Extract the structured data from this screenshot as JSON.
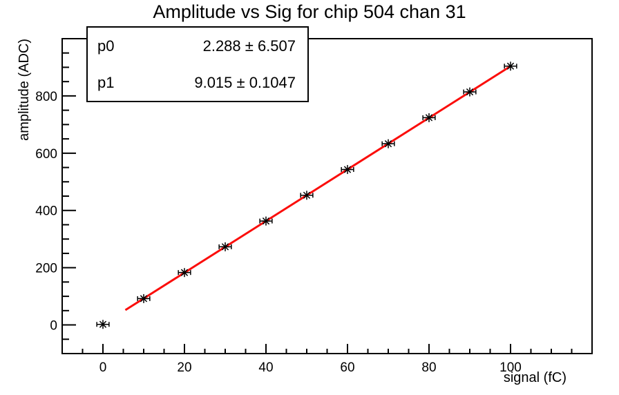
{
  "title": "Amplitude vs Sig for chip 504 chan 31",
  "stats_box": {
    "rows": [
      {
        "label": "p0",
        "value": "2.288 ± 6.507"
      },
      {
        "label": "p1",
        "value": "9.015 ± 0.1047"
      }
    ]
  },
  "chart_data": {
    "type": "scatter",
    "title": "Amplitude vs Sig for chip 504 chan 31",
    "xlabel": "signal (fC)",
    "ylabel": "amplitude (ADC)",
    "xlim": [
      -10,
      120
    ],
    "ylim": [
      -100,
      1000
    ],
    "grid": false,
    "x_major_ticks": [
      0,
      20,
      40,
      60,
      80,
      100
    ],
    "x_tick_labels": [
      "0",
      "20",
      "40",
      "60",
      "80",
      "100"
    ],
    "x_minor_step": 5,
    "y_major_ticks": [
      0,
      200,
      400,
      600,
      800
    ],
    "y_tick_labels": [
      "0",
      "200",
      "400",
      "600",
      "800"
    ],
    "y_minor_step": 50,
    "points": {
      "x": [
        0,
        10,
        20,
        30,
        40,
        50,
        60,
        70,
        80,
        90,
        100
      ],
      "y": [
        2,
        92,
        183,
        273,
        363,
        453,
        543,
        633,
        724,
        814,
        904
      ],
      "xerr": 1.5,
      "marker": "asterisk",
      "color": "#000000"
    },
    "fit": {
      "type": "linear",
      "p0": 2.288,
      "p0_err": 6.507,
      "p1": 9.015,
      "p1_err": 0.1047,
      "range": [
        5.5,
        100
      ],
      "color": "#fb0d0a",
      "line_width": 3
    }
  }
}
